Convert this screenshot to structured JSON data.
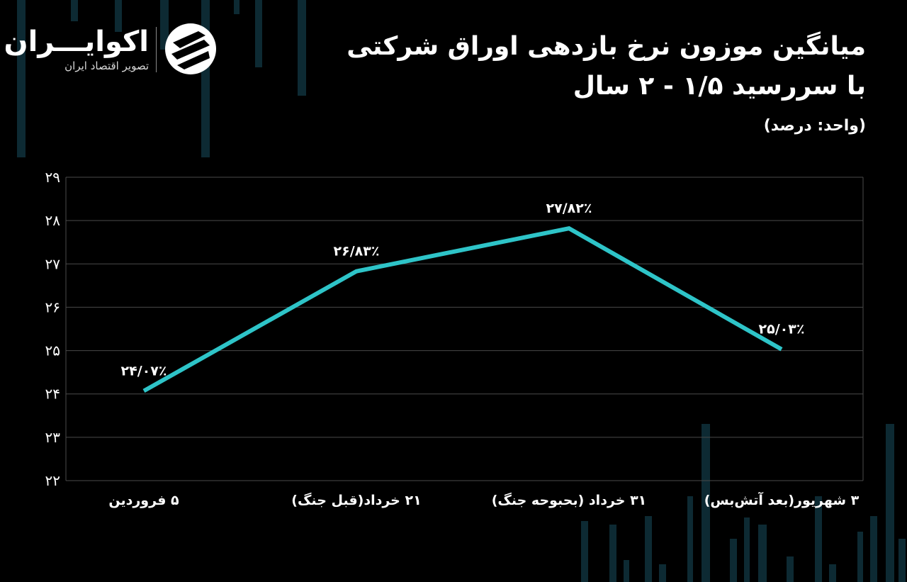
{
  "brand": {
    "name": "اکوایـــران",
    "tagline": "تصویر اقتصاد ایران"
  },
  "title_line1": "میانگین موزون نرخ بازدهی اوراق شرکتی",
  "title_line2": "با سررسید ۱/۵ - ۲ سال",
  "unit_label": "(واحد: درصد)",
  "colors": {
    "background": "#000000",
    "line": "#2ec4c8",
    "grid": "#4a4a4a",
    "decor_bars": "#0d2a33"
  },
  "chart_data": {
    "type": "line",
    "title": "میانگین موزون نرخ بازدهی اوراق شرکتی با سررسید ۱/۵ - ۲ سال",
    "ylabel": "(واحد: درصد)",
    "categories": [
      "۵ فروردین",
      "۲۱ خرداد(قبل جنگ)",
      "۳۱ خرداد (بحبوحه جنگ)",
      "۳ شهریور(بعد آتش‌بس)"
    ],
    "values": [
      24.07,
      26.83,
      27.82,
      25.03
    ],
    "value_labels": [
      "۲۴/۰۷٪",
      "۲۶/۸۳٪",
      "۲۷/۸۲٪",
      "۲۵/۰۳٪"
    ],
    "ylim": [
      22,
      29
    ],
    "yticks": [
      22,
      23,
      24,
      25,
      26,
      27,
      28,
      29
    ],
    "ytick_labels": [
      "۲۲",
      "۲۳",
      "۲۴",
      "۲۵",
      "۲۶",
      "۲۷",
      "۲۸",
      "۲۹"
    ],
    "grid": true,
    "legend": false
  }
}
